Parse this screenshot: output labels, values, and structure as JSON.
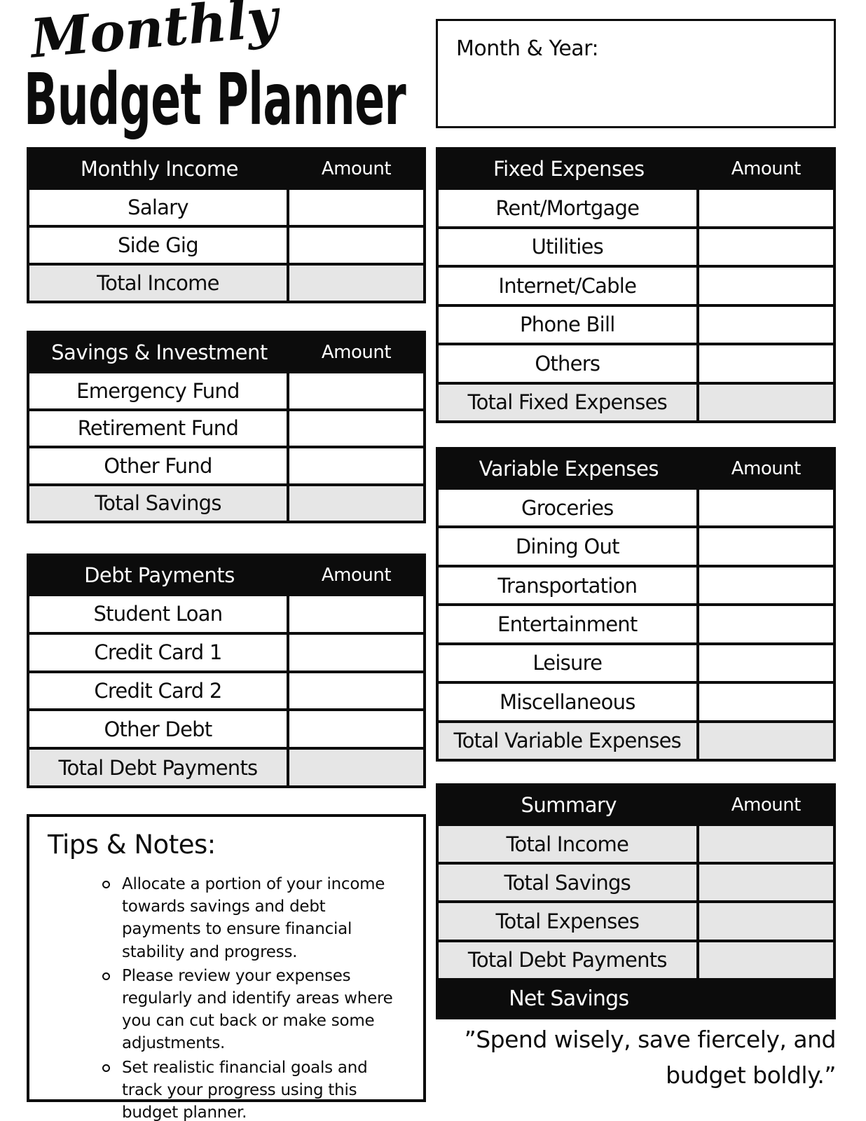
{
  "title": {
    "script": "Monthly",
    "main": "Budget Planner"
  },
  "month_year": {
    "label": "Month & Year:"
  },
  "tables": {
    "income": {
      "title": "Monthly Income",
      "amount_header": "Amount",
      "rows": [
        "Salary",
        "Side Gig",
        "Total Income"
      ]
    },
    "savings": {
      "title": "Savings & Investment",
      "amount_header": "Amount",
      "rows": [
        "Emergency Fund",
        "Retirement Fund",
        "Other Fund",
        "Total Savings"
      ]
    },
    "debt": {
      "title": "Debt Payments",
      "amount_header": "Amount",
      "rows": [
        "Student Loan",
        "Credit Card 1",
        "Credit Card 2",
        "Other Debt",
        "Total Debt Payments"
      ]
    },
    "fixed": {
      "title": "Fixed Expenses",
      "amount_header": "Amount",
      "rows": [
        "Rent/Mortgage",
        "Utilities",
        "Internet/Cable",
        "Phone Bill",
        "Others",
        "Total Fixed Expenses"
      ]
    },
    "variable": {
      "title": "Variable Expenses",
      "amount_header": "Amount",
      "rows": [
        "Groceries",
        "Dining Out",
        "Transportation",
        "Entertainment",
        "Leisure",
        "Miscellaneous",
        "Total Variable Expenses"
      ]
    },
    "summary": {
      "title": "Summary",
      "amount_header": "Amount",
      "rows": [
        "Total Income",
        "Total Savings",
        "Total Expenses",
        "Total Debt Payments",
        "Net Savings"
      ]
    }
  },
  "tips": {
    "heading": "Tips & Notes:",
    "items": [
      "Allocate a portion of your income towards savings and debt payments to ensure financial stability and progress.",
      "Please review your expenses regularly and identify areas where you can cut back or make some adjustments.",
      "Set realistic financial goals and track your progress using this budget planner."
    ]
  },
  "quote": {
    "line1": "”Spend wisely, save fiercely, and",
    "line2": "budget boldly.”"
  },
  "colors": {
    "black": "#0c0c0c",
    "row_gray": "#e6e6e6",
    "paper": "#ffffff"
  }
}
